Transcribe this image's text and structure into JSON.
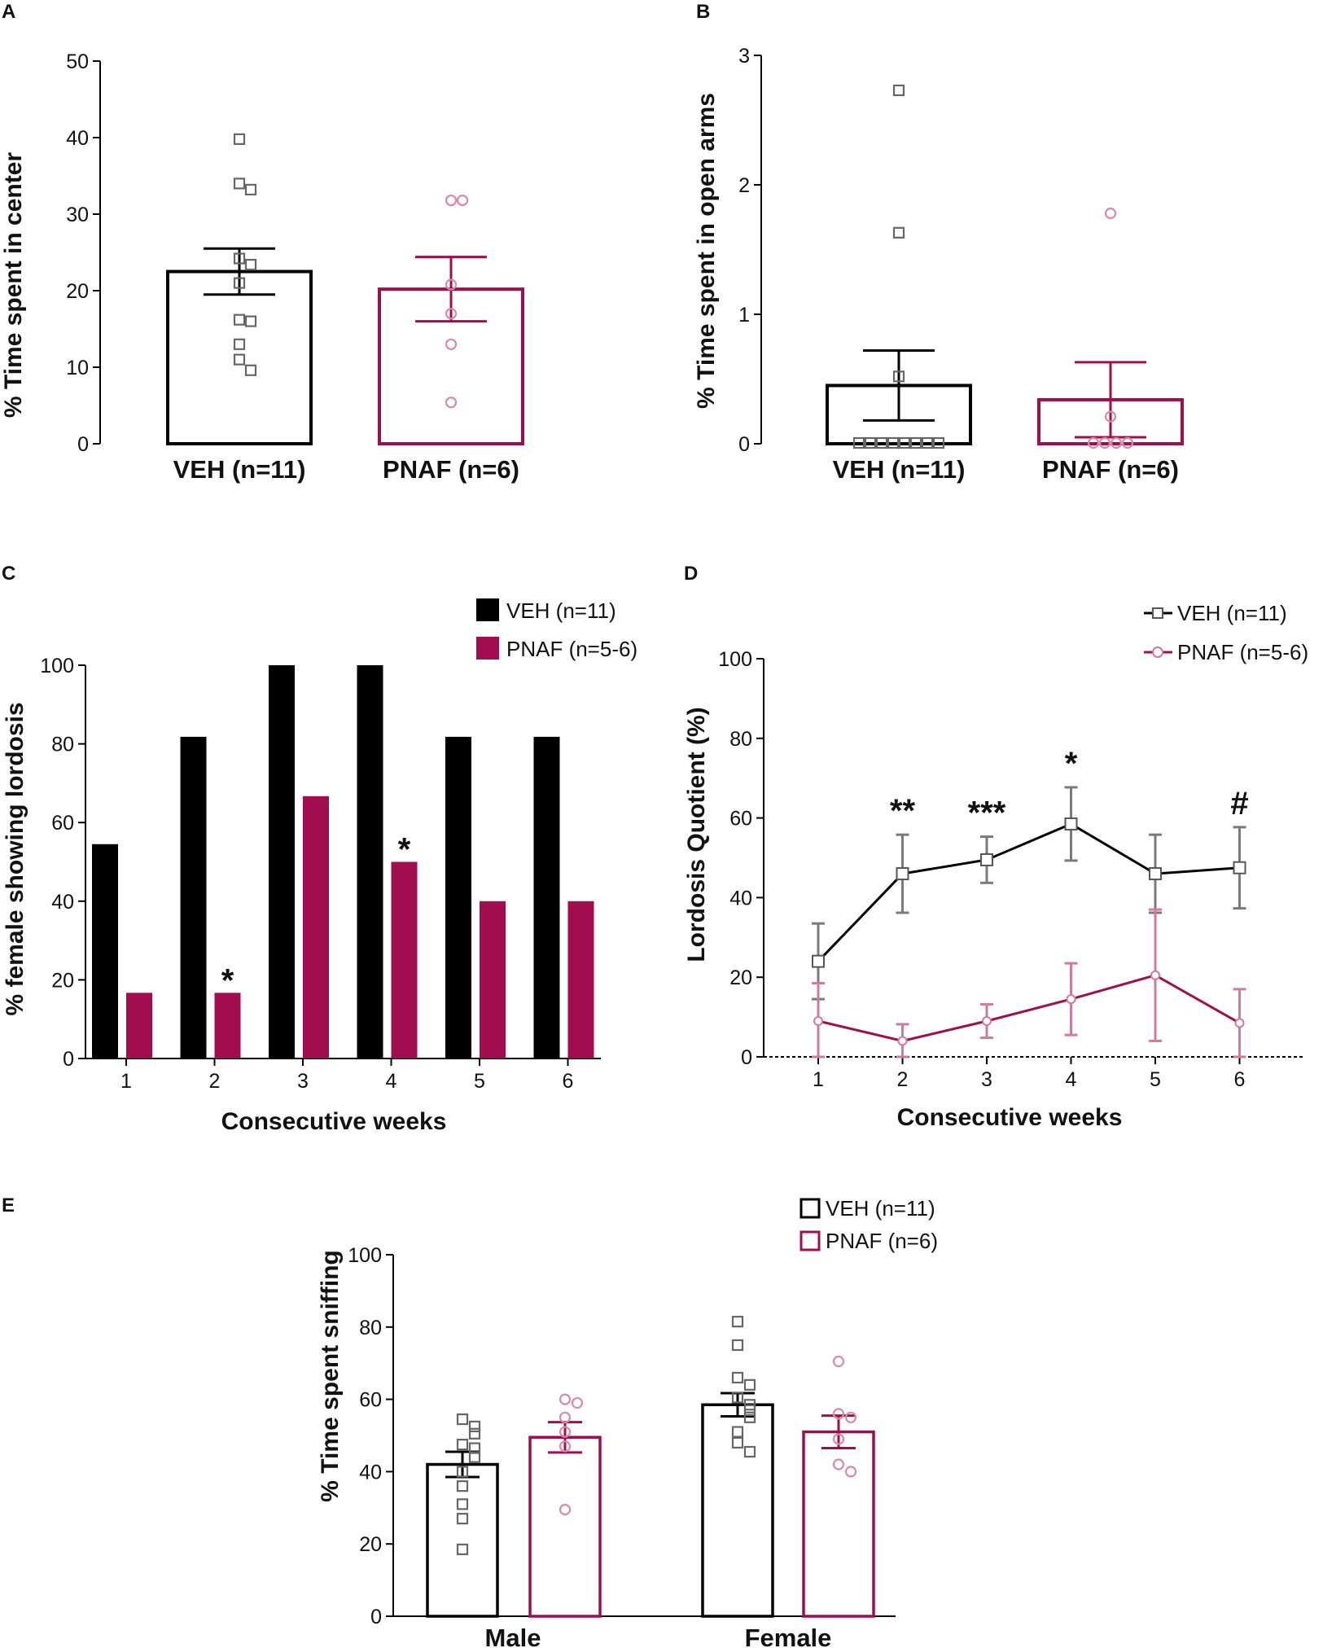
{
  "colors": {
    "veh": "#000000",
    "pnaf": "#a10d4e",
    "veh_point": "#666666",
    "pnaf_point": "#d88aa8",
    "line_gray": "#7a7a7a",
    "line_pink": "#d27a9e"
  },
  "chart_data": [
    {
      "panel": "A",
      "type": "bar",
      "ylabel": "% Time spent in center",
      "ylim": [
        0,
        50
      ],
      "yticks": [
        0,
        10,
        20,
        30,
        40,
        50
      ],
      "categories": [
        "VEH (n=11)",
        "PNAF (n=6)"
      ],
      "values": [
        22.5,
        20.2
      ],
      "errors": [
        3.0,
        4.2
      ],
      "points": [
        [
          39.8,
          34.0,
          33.2,
          24.2,
          23.4,
          21.0,
          16.2,
          16.0,
          13.0,
          11.0,
          9.6
        ],
        [
          31.8,
          31.8,
          20.8,
          17.0,
          13.0,
          5.4
        ]
      ]
    },
    {
      "panel": "B",
      "type": "bar",
      "ylabel": "% Time spent in open arms",
      "ylim": [
        0,
        3
      ],
      "yticks": [
        0,
        1,
        2,
        3
      ],
      "categories": [
        "VEH (n=11)",
        "PNAF (n=6)"
      ],
      "values": [
        0.45,
        0.34
      ],
      "errors": [
        0.27,
        0.29
      ],
      "points": [
        [
          2.73,
          1.63,
          0.52,
          0,
          0,
          0,
          0,
          0,
          0,
          0,
          0
        ],
        [
          1.78,
          0.21,
          0,
          0,
          0,
          0
        ]
      ]
    },
    {
      "panel": "C",
      "type": "bar",
      "ylabel": "% female showing lordosis",
      "xlabel": "Consecutive weeks",
      "ylim": [
        0,
        100
      ],
      "yticks": [
        0,
        20,
        40,
        60,
        80,
        100
      ],
      "categories": [
        "1",
        "2",
        "3",
        "4",
        "5",
        "6"
      ],
      "legend": [
        "VEH (n=11)",
        "PNAF (n=5-6)"
      ],
      "series": [
        {
          "name": "VEH (n=11)",
          "values": [
            54.5,
            81.8,
            100,
            100,
            81.8,
            81.8
          ]
        },
        {
          "name": "PNAF (n=5-6)",
          "values": [
            16.7,
            16.7,
            66.7,
            50,
            40,
            40
          ]
        }
      ],
      "annotations": [
        {
          "category": "2",
          "text": "*"
        },
        {
          "category": "4",
          "text": "*"
        }
      ]
    },
    {
      "panel": "D",
      "type": "line",
      "ylabel": "Lordosis Quotient (%)",
      "xlabel": "Consecutive weeks",
      "ylim": [
        0,
        100
      ],
      "yticks": [
        0,
        20,
        40,
        60,
        80,
        100
      ],
      "x": [
        1,
        2,
        3,
        4,
        5,
        6
      ],
      "legend": [
        "VEH (n=11)",
        "PNAF (n=5-6)"
      ],
      "series": [
        {
          "name": "VEH (n=11)",
          "values": [
            24,
            46,
            49.5,
            58.5,
            46,
            47.5
          ],
          "errors": [
            9.5,
            9.8,
            5.8,
            9.2,
            9.8,
            10.2
          ]
        },
        {
          "name": "PNAF (n=5-6)",
          "values": [
            9,
            4,
            9,
            14.5,
            20.5,
            8.5
          ],
          "errors": [
            9.5,
            4.2,
            4.2,
            9,
            16.5,
            8.5
          ]
        }
      ],
      "annotations": [
        {
          "x": 2,
          "text": "**"
        },
        {
          "x": 3,
          "text": "***"
        },
        {
          "x": 4,
          "text": "*"
        },
        {
          "x": 6,
          "text": "#"
        }
      ]
    },
    {
      "panel": "E",
      "type": "bar",
      "ylabel": "% Time spent sniffing",
      "ylim": [
        0,
        100
      ],
      "yticks": [
        0,
        20,
        40,
        60,
        80,
        100
      ],
      "categories": [
        "Male",
        "Female"
      ],
      "legend": [
        "VEH (n=11)",
        "PNAF (n=6)"
      ],
      "series": [
        {
          "name": "VEH (n=11)",
          "values": [
            42,
            58.5
          ],
          "errors": [
            3.5,
            3.2
          ],
          "points": [
            [
              54.5,
              52.5,
              50.5,
              47.5,
              46.5,
              44,
              40,
              36,
              31,
              27,
              18.5
            ],
            [
              81.5,
              75,
              66,
              64,
              60.5,
              58.5,
              57,
              55,
              51,
              48,
              45.5
            ]
          ]
        },
        {
          "name": "PNAF (n=6)",
          "values": [
            49.5,
            51
          ],
          "errors": [
            4.2,
            4.5
          ],
          "points": [
            [
              60,
              59,
              55,
              51,
              47,
              29.5
            ],
            [
              70.5,
              56,
              55,
              49,
              42,
              40
            ]
          ]
        }
      ]
    }
  ]
}
